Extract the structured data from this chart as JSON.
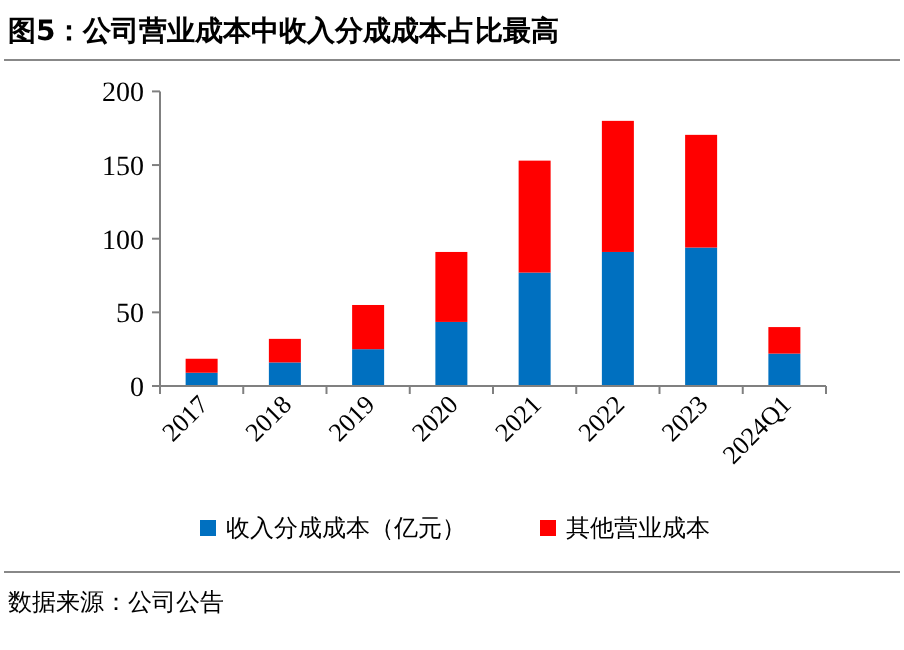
{
  "chart_data": {
    "type": "bar",
    "title": "图5：公司营业成本中收入分成成本占比最高",
    "categories": [
      "2017",
      "2018",
      "2019",
      "2020",
      "2021",
      "2022",
      "2023",
      "2024Q1"
    ],
    "stacked": true,
    "series": [
      {
        "name": "收入分成成本（亿元）",
        "color": "#0070c0",
        "values": [
          9,
          16,
          25,
          43.5,
          77,
          91,
          94,
          22
        ]
      },
      {
        "name": "其他营业成本",
        "color": "#ff0000",
        "values": [
          9.5,
          16,
          30,
          47.5,
          76,
          89,
          76.5,
          18
        ]
      }
    ],
    "ylim": [
      0,
      200
    ],
    "yticks": [
      0,
      50,
      100,
      150,
      200
    ],
    "grid": false,
    "legend": "bottom",
    "annotations": [
      "数据来源：公司公告"
    ]
  }
}
